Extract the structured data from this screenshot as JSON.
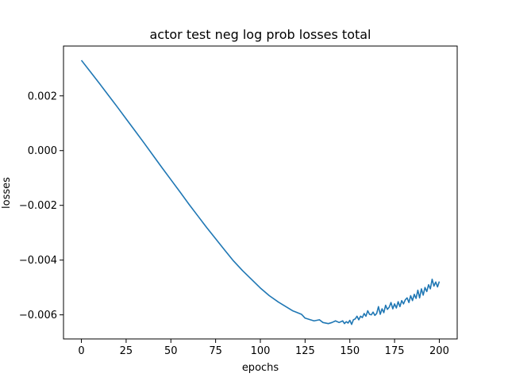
{
  "chart_data": {
    "type": "line",
    "title": "actor test neg log prob losses total",
    "xlabel": "epochs",
    "ylabel": "losses",
    "xlim": [
      -10,
      210
    ],
    "ylim": [
      -0.00688,
      0.00382
    ],
    "xticks": [
      0,
      25,
      50,
      75,
      100,
      125,
      150,
      175,
      200
    ],
    "yticks": [
      0.002,
      0.0,
      -0.002,
      -0.004,
      -0.006
    ],
    "ytick_labels": [
      "0.002",
      "0.000",
      "−0.002",
      "−0.004",
      "−0.006"
    ],
    "grid": false,
    "color": "#1f77b4",
    "series": [
      {
        "x": [
          0,
          5,
          10,
          15,
          20,
          25,
          30,
          35,
          40,
          45,
          50,
          55,
          60,
          65,
          70,
          75,
          80,
          85,
          90,
          95,
          100,
          105,
          110,
          115,
          118,
          120,
          123,
          125,
          128,
          130,
          133,
          135,
          138,
          140,
          142,
          144,
          146,
          147,
          148,
          149,
          150,
          151,
          152,
          153,
          154,
          155,
          156,
          157,
          158,
          159,
          160,
          161,
          162,
          163,
          164,
          165,
          166,
          167,
          168,
          169,
          170,
          171,
          172,
          173,
          174,
          175,
          176,
          177,
          178,
          179,
          180,
          181,
          182,
          183,
          184,
          185,
          186,
          187,
          188,
          189,
          190,
          191,
          192,
          193,
          194,
          195,
          196,
          197,
          198,
          199,
          200
        ],
        "y": [
          0.0033,
          0.00288,
          0.00246,
          0.00203,
          0.0016,
          0.00116,
          0.00072,
          0.00028,
          -0.00017,
          -0.00062,
          -0.00106,
          -0.0015,
          -0.00195,
          -0.00238,
          -0.00281,
          -0.00322,
          -0.00363,
          -0.00403,
          -0.00438,
          -0.0047,
          -0.00502,
          -0.0053,
          -0.00553,
          -0.00573,
          -0.00585,
          -0.0059,
          -0.00598,
          -0.00612,
          -0.00618,
          -0.00622,
          -0.00618,
          -0.00628,
          -0.00632,
          -0.00628,
          -0.00622,
          -0.00628,
          -0.00622,
          -0.00632,
          -0.00625,
          -0.0063,
          -0.0062,
          -0.00635,
          -0.00618,
          -0.00615,
          -0.00605,
          -0.00618,
          -0.00605,
          -0.0061,
          -0.00595,
          -0.00605,
          -0.00585,
          -0.00598,
          -0.006,
          -0.0059,
          -0.00602,
          -0.00595,
          -0.0057,
          -0.00598,
          -0.00578,
          -0.00592,
          -0.00565,
          -0.0058,
          -0.00572,
          -0.00555,
          -0.00578,
          -0.0056,
          -0.00575,
          -0.00552,
          -0.0057,
          -0.00548,
          -0.0056,
          -0.00545,
          -0.00538,
          -0.00555,
          -0.0053,
          -0.00548,
          -0.00525,
          -0.0054,
          -0.0051,
          -0.00538,
          -0.00505,
          -0.00528,
          -0.005,
          -0.00515,
          -0.0049,
          -0.00505,
          -0.0047,
          -0.00495,
          -0.0048,
          -0.00498,
          -0.00478
        ]
      }
    ]
  }
}
